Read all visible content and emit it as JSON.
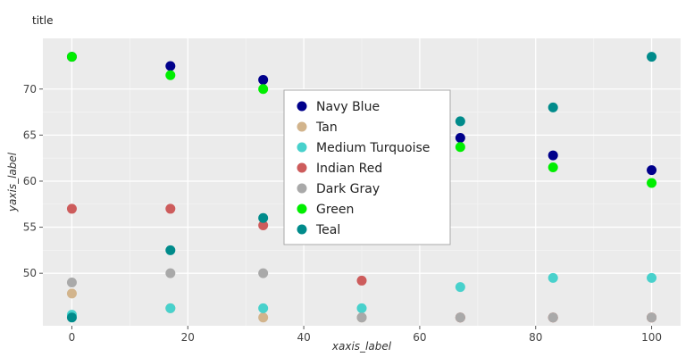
{
  "chart_data": {
    "type": "scatter",
    "title": "title",
    "xlabel": "xaxis_label",
    "ylabel": "yaxis_label",
    "xlim": [
      -5,
      105
    ],
    "ylim": [
      44.3,
      75.5
    ],
    "xticks": [
      0,
      20,
      40,
      60,
      80,
      100
    ],
    "yticks": [
      50,
      55,
      60,
      65,
      70
    ],
    "grid": true,
    "legend_position": "center",
    "x": [
      0,
      17,
      33,
      50,
      67,
      83,
      100
    ],
    "series": [
      {
        "name": "Navy Blue",
        "color": "#00008b",
        "values": [
          73.5,
          72.5,
          71.0,
          68.7,
          64.7,
          62.8,
          61.2
        ]
      },
      {
        "name": "Tan",
        "color": "#d2b48c",
        "values": [
          47.8,
          46.2,
          45.2,
          45.2,
          45.2,
          45.2,
          45.2
        ]
      },
      {
        "name": "Medium Turquoise",
        "color": "#48d1cc",
        "values": [
          45.5,
          46.2,
          46.2,
          46.2,
          48.5,
          49.5,
          49.5
        ]
      },
      {
        "name": "Indian Red",
        "color": "#cd5c5c",
        "values": [
          57.0,
          57.0,
          55.2,
          49.2,
          45.2,
          45.2,
          45.2
        ]
      },
      {
        "name": "Dark Gray",
        "color": "#a9a9a9",
        "values": [
          49.0,
          50.0,
          50.0,
          45.2,
          45.2,
          45.2,
          45.2
        ]
      },
      {
        "name": "Green",
        "color": "#00ee00",
        "values": [
          73.5,
          71.5,
          70.0,
          67.3,
          63.7,
          61.5,
          59.8
        ]
      },
      {
        "name": "Teal",
        "color": "#008b8b",
        "values": [
          45.2,
          52.5,
          56.0,
          61.0,
          66.5,
          68.0,
          73.5
        ]
      }
    ]
  }
}
